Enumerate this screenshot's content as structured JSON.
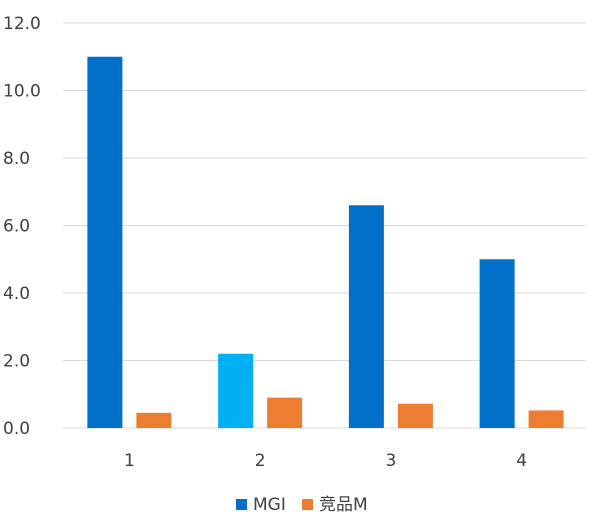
{
  "chart_data": {
    "type": "bar",
    "categories": [
      "1",
      "2",
      "3",
      "4"
    ],
    "series": [
      {
        "name": "MGI",
        "values": [
          11.0,
          2.2,
          6.6,
          5.0
        ],
        "color": "#0070c8"
      },
      {
        "name": "竞品M",
        "values": [
          0.45,
          0.9,
          0.72,
          0.52
        ],
        "color": "#ed7d31"
      }
    ],
    "highlight": {
      "series": 0,
      "index": 1,
      "color": "#00b0f0"
    },
    "ylim": [
      0,
      12
    ],
    "yticks": [
      "0.0",
      "2.0",
      "4.0",
      "6.0",
      "8.0",
      "10.0",
      "12.0"
    ],
    "grid": true,
    "legend_position": "bottom",
    "axis_color": "#d9d9d9",
    "text_color": "#404040"
  }
}
